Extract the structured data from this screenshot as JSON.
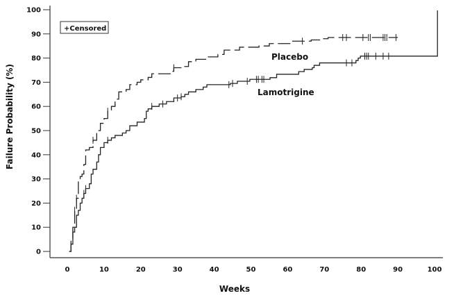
{
  "chart_data": {
    "type": "line",
    "step": true,
    "title": "",
    "xlabel": "Weeks",
    "ylabel": "Failure Probability (%)",
    "xlim": [
      -5,
      103
    ],
    "ylim": [
      -2,
      102
    ],
    "xticks": [
      0,
      10,
      20,
      30,
      40,
      50,
      60,
      70,
      80,
      90,
      100
    ],
    "yticks": [
      0,
      10,
      20,
      30,
      40,
      50,
      60,
      70,
      80,
      90,
      100
    ],
    "grid": false,
    "legend": {
      "text": "+Censored",
      "placement": "top-left"
    },
    "series": [
      {
        "name": "Placebo",
        "style": "dashed",
        "color": "#222222",
        "points": [
          [
            0.5,
            0
          ],
          [
            1,
            5
          ],
          [
            1.5,
            10
          ],
          [
            2,
            17
          ],
          [
            2.5,
            22
          ],
          [
            3,
            29
          ],
          [
            3.5,
            31
          ],
          [
            4,
            32
          ],
          [
            4.5,
            36
          ],
          [
            5,
            42
          ],
          [
            6,
            43
          ],
          [
            7,
            46
          ],
          [
            8,
            50
          ],
          [
            9,
            53
          ],
          [
            10,
            55
          ],
          [
            11,
            58
          ],
          [
            12,
            60
          ],
          [
            13,
            63
          ],
          [
            14,
            66
          ],
          [
            16,
            67
          ],
          [
            17,
            69
          ],
          [
            19,
            70
          ],
          [
            20,
            71
          ],
          [
            22,
            72
          ],
          [
            23,
            73.5
          ],
          [
            28,
            74.5
          ],
          [
            29,
            76
          ],
          [
            31,
            76.5
          ],
          [
            33,
            78.5
          ],
          [
            35,
            79.5
          ],
          [
            38,
            80.5
          ],
          [
            41,
            81.5
          ],
          [
            42.7,
            83.3
          ],
          [
            46.9,
            84.5
          ],
          [
            52.2,
            85
          ],
          [
            55,
            86
          ],
          [
            61,
            87
          ],
          [
            66.4,
            87.5
          ],
          [
            69.2,
            88
          ],
          [
            71,
            88.5
          ],
          [
            90,
            88.5
          ]
        ],
        "censored": [
          2,
          2.5,
          7,
          11,
          29,
          64,
          75,
          76,
          80.5,
          82,
          82.5,
          86,
          86.5,
          87,
          89.5
        ]
      },
      {
        "name": "Lamotrigine",
        "style": "solid",
        "color": "#222222",
        "points": [
          [
            0.5,
            0
          ],
          [
            1,
            3
          ],
          [
            1.5,
            8
          ],
          [
            2,
            10
          ],
          [
            2.5,
            15
          ],
          [
            3,
            17
          ],
          [
            3.5,
            20
          ],
          [
            4,
            22
          ],
          [
            4.5,
            24
          ],
          [
            5,
            26
          ],
          [
            6,
            28
          ],
          [
            6.5,
            32
          ],
          [
            7,
            34
          ],
          [
            8,
            37
          ],
          [
            8.5,
            40
          ],
          [
            9,
            43
          ],
          [
            10,
            45
          ],
          [
            11,
            46
          ],
          [
            12,
            47
          ],
          [
            13,
            48
          ],
          [
            15,
            49
          ],
          [
            16,
            50
          ],
          [
            17,
            52
          ],
          [
            19,
            53.5
          ],
          [
            21,
            55
          ],
          [
            21.5,
            58
          ],
          [
            22,
            59
          ],
          [
            23,
            60
          ],
          [
            25,
            61
          ],
          [
            27,
            62
          ],
          [
            29,
            63.5
          ],
          [
            31,
            64
          ],
          [
            32,
            65
          ],
          [
            33,
            66
          ],
          [
            35,
            67
          ],
          [
            37,
            68
          ],
          [
            38,
            69
          ],
          [
            44.4,
            69.5
          ],
          [
            46.3,
            70.4
          ],
          [
            49.7,
            71.2
          ],
          [
            55.2,
            71.9
          ],
          [
            57,
            73.3
          ],
          [
            63,
            74.4
          ],
          [
            64.5,
            75.3
          ],
          [
            66.7,
            76
          ],
          [
            67.2,
            77
          ],
          [
            68.7,
            78
          ],
          [
            78.6,
            79
          ],
          [
            79.2,
            80
          ],
          [
            79.8,
            80.8
          ],
          [
            100.8,
            80.8
          ],
          [
            100.8,
            99.7
          ]
        ],
        "censored": [
          1.5,
          4.5,
          5,
          11,
          23,
          26,
          30,
          31,
          44,
          45,
          49,
          51.5,
          52,
          53,
          53.5,
          76,
          77.5,
          81,
          81.5,
          82,
          84,
          86,
          87.5
        ]
      }
    ]
  }
}
